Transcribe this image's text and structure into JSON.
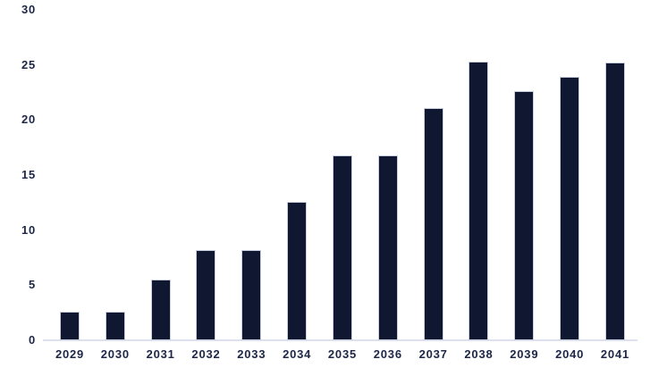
{
  "chart_data": {
    "type": "bar",
    "title": "",
    "xlabel": "",
    "ylabel": "",
    "categories": [
      "2029",
      "2030",
      "2031",
      "2032",
      "2033",
      "2034",
      "2035",
      "2036",
      "2037",
      "2038",
      "2039",
      "2040",
      "2041"
    ],
    "values": [
      2.6,
      2.6,
      5.5,
      8.2,
      8.2,
      12.6,
      16.8,
      16.8,
      21.1,
      25.3,
      22.6,
      23.9,
      25.2
    ],
    "ylim": [
      0,
      30
    ],
    "y_ticks": [
      0,
      5,
      10,
      15,
      20,
      25,
      30
    ],
    "grid": "off",
    "legend": "none",
    "colors": {
      "bar_fill": "#101831",
      "bar_border": "#c9cedd",
      "axis_line": "#dde1ee",
      "label_text": "#1d2647",
      "background": "#ffffff"
    }
  }
}
